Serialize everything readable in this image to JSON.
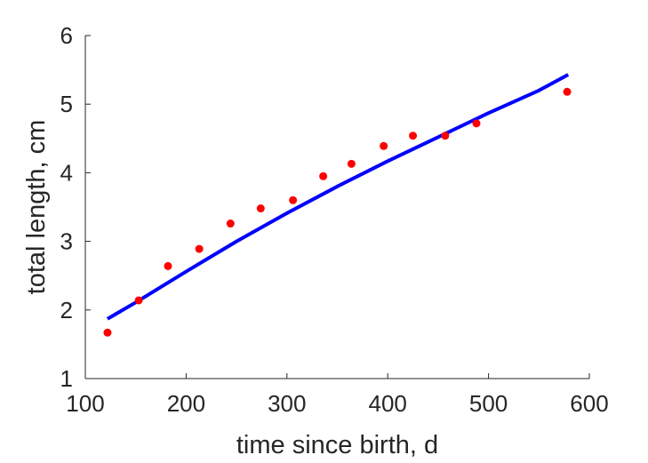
{
  "chart_data": {
    "type": "scatter",
    "title": "",
    "xlabel": "time since birth, d",
    "ylabel": "total length, cm",
    "xlim": [
      100,
      600
    ],
    "ylim": [
      1,
      6
    ],
    "xticks": [
      100,
      200,
      300,
      400,
      500,
      600
    ],
    "yticks": [
      1,
      2,
      3,
      4,
      5,
      6
    ],
    "grid": false,
    "legend": "none",
    "series": [
      {
        "kind": "points",
        "color": "#ff0000",
        "x": [
          122,
          153,
          182,
          213,
          244,
          274,
          306,
          336,
          364,
          396,
          425,
          457,
          488,
          578
        ],
        "y": [
          1.67,
          2.14,
          2.64,
          2.89,
          3.26,
          3.48,
          3.6,
          3.95,
          4.13,
          4.39,
          4.54,
          4.54,
          4.72,
          5.18
        ]
      },
      {
        "kind": "line",
        "color": "#0000ff",
        "x": [
          122,
          150,
          200,
          250,
          300,
          350,
          400,
          450,
          500,
          550,
          579
        ],
        "y": [
          1.87,
          2.11,
          2.56,
          3.0,
          3.41,
          3.8,
          4.17,
          4.52,
          4.87,
          5.2,
          5.43
        ]
      }
    ]
  }
}
